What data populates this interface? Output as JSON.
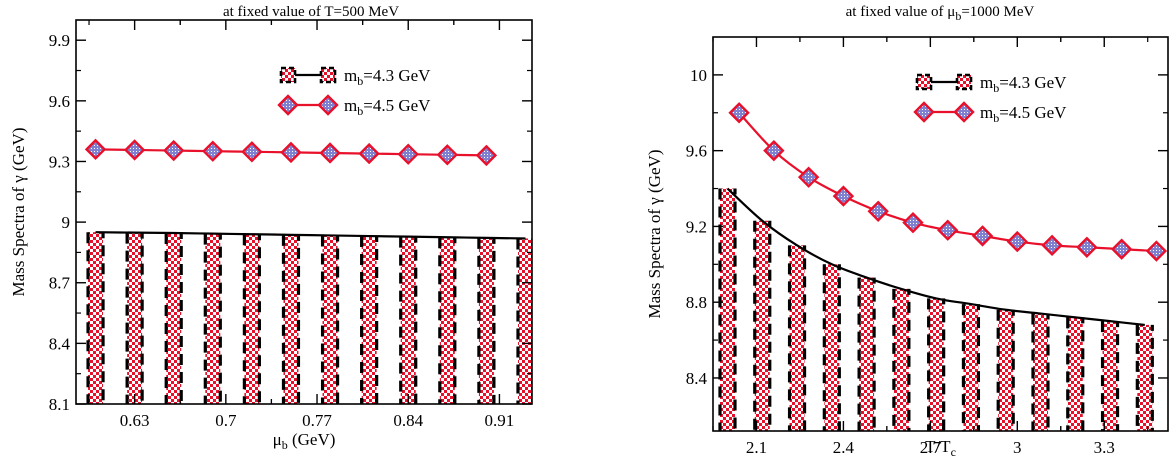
{
  "chart_data": [
    {
      "type": "line",
      "title": "at fixed value of T=500 MeV",
      "xlabel_main": "μ",
      "xlabel_sub": "b",
      "xlabel_tail": " (GeV)",
      "ylabel": "Mass Spectra of γ (GeV)",
      "xlim": [
        0.585,
        0.935
      ],
      "ylim": [
        8.1,
        10.0
      ],
      "xticks": [
        "0.63",
        "0.7",
        "0.77",
        "0.84",
        "0.91"
      ],
      "xtick_values": [
        0.63,
        0.7,
        0.77,
        0.84,
        0.91
      ],
      "yticks": [
        "8.1",
        "8.4",
        "8.7",
        "9",
        "9.3",
        "9.6",
        "9.9"
      ],
      "ytick_values": [
        8.1,
        8.4,
        8.7,
        9.0,
        9.3,
        9.6,
        9.9
      ],
      "legend": "top-right",
      "series": [
        {
          "name_main": "m",
          "name_sub": "b",
          "name_tail": "=4.3 GeV",
          "color": "#000000",
          "marker": "checkered-square",
          "x": [
            0.6,
            0.63,
            0.66,
            0.69,
            0.72,
            0.75,
            0.78,
            0.81,
            0.84,
            0.87,
            0.9,
            0.93
          ],
          "y": [
            8.95,
            8.948,
            8.946,
            8.943,
            8.94,
            8.937,
            8.934,
            8.931,
            8.928,
            8.925,
            8.922,
            8.919
          ]
        },
        {
          "name_main": "m",
          "name_sub": "b",
          "name_tail": "=4.5 GeV",
          "color": "#e8102a",
          "marker": "diamond",
          "x": [
            0.6,
            0.63,
            0.66,
            0.69,
            0.72,
            0.75,
            0.78,
            0.81,
            0.84,
            0.87,
            0.9
          ],
          "y": [
            9.36,
            9.357,
            9.354,
            9.351,
            9.348,
            9.345,
            9.342,
            9.339,
            9.336,
            9.333,
            9.33
          ]
        }
      ]
    },
    {
      "type": "line",
      "title_main": "at fixed value of μ",
      "title_sub": "b",
      "title_tail": "=1000 MeV",
      "xlabel_main": "T/T",
      "xlabel_sub": "c",
      "ylabel": "Mass Spectra of γ (GeV)",
      "xlim": [
        1.95,
        3.52
      ],
      "ylim": [
        8.12,
        10.2
      ],
      "xticks": [
        "2.1",
        "2.4",
        "2.7",
        "3",
        "3.3"
      ],
      "xtick_values": [
        2.1,
        2.4,
        2.7,
        3.0,
        3.3
      ],
      "yticks": [
        "8.4",
        "8.8",
        "9.2",
        "9.6",
        "10"
      ],
      "ytick_values": [
        8.4,
        8.8,
        9.2,
        9.6,
        10.0
      ],
      "legend": "top-right",
      "series": [
        {
          "name_main": "m",
          "name_sub": "b",
          "name_tail": "=4.3 GeV",
          "color": "#000000",
          "marker": "checkered-square",
          "x": [
            2.0,
            2.12,
            2.24,
            2.36,
            2.48,
            2.6,
            2.72,
            2.84,
            2.96,
            3.08,
            3.2,
            3.32,
            3.44
          ],
          "y": [
            9.4,
            9.23,
            9.1,
            9.0,
            8.93,
            8.87,
            8.82,
            8.79,
            8.76,
            8.74,
            8.72,
            8.7,
            8.68
          ]
        },
        {
          "name_main": "m",
          "name_sub": "b",
          "name_tail": "=4.5 GeV",
          "color": "#e8102a",
          "marker": "diamond",
          "x": [
            2.04,
            2.16,
            2.28,
            2.4,
            2.52,
            2.64,
            2.76,
            2.88,
            3.0,
            3.12,
            3.24,
            3.36,
            3.48
          ],
          "y": [
            9.8,
            9.6,
            9.46,
            9.36,
            9.28,
            9.22,
            9.18,
            9.15,
            9.12,
            9.1,
            9.09,
            9.08,
            9.07
          ]
        }
      ]
    }
  ]
}
